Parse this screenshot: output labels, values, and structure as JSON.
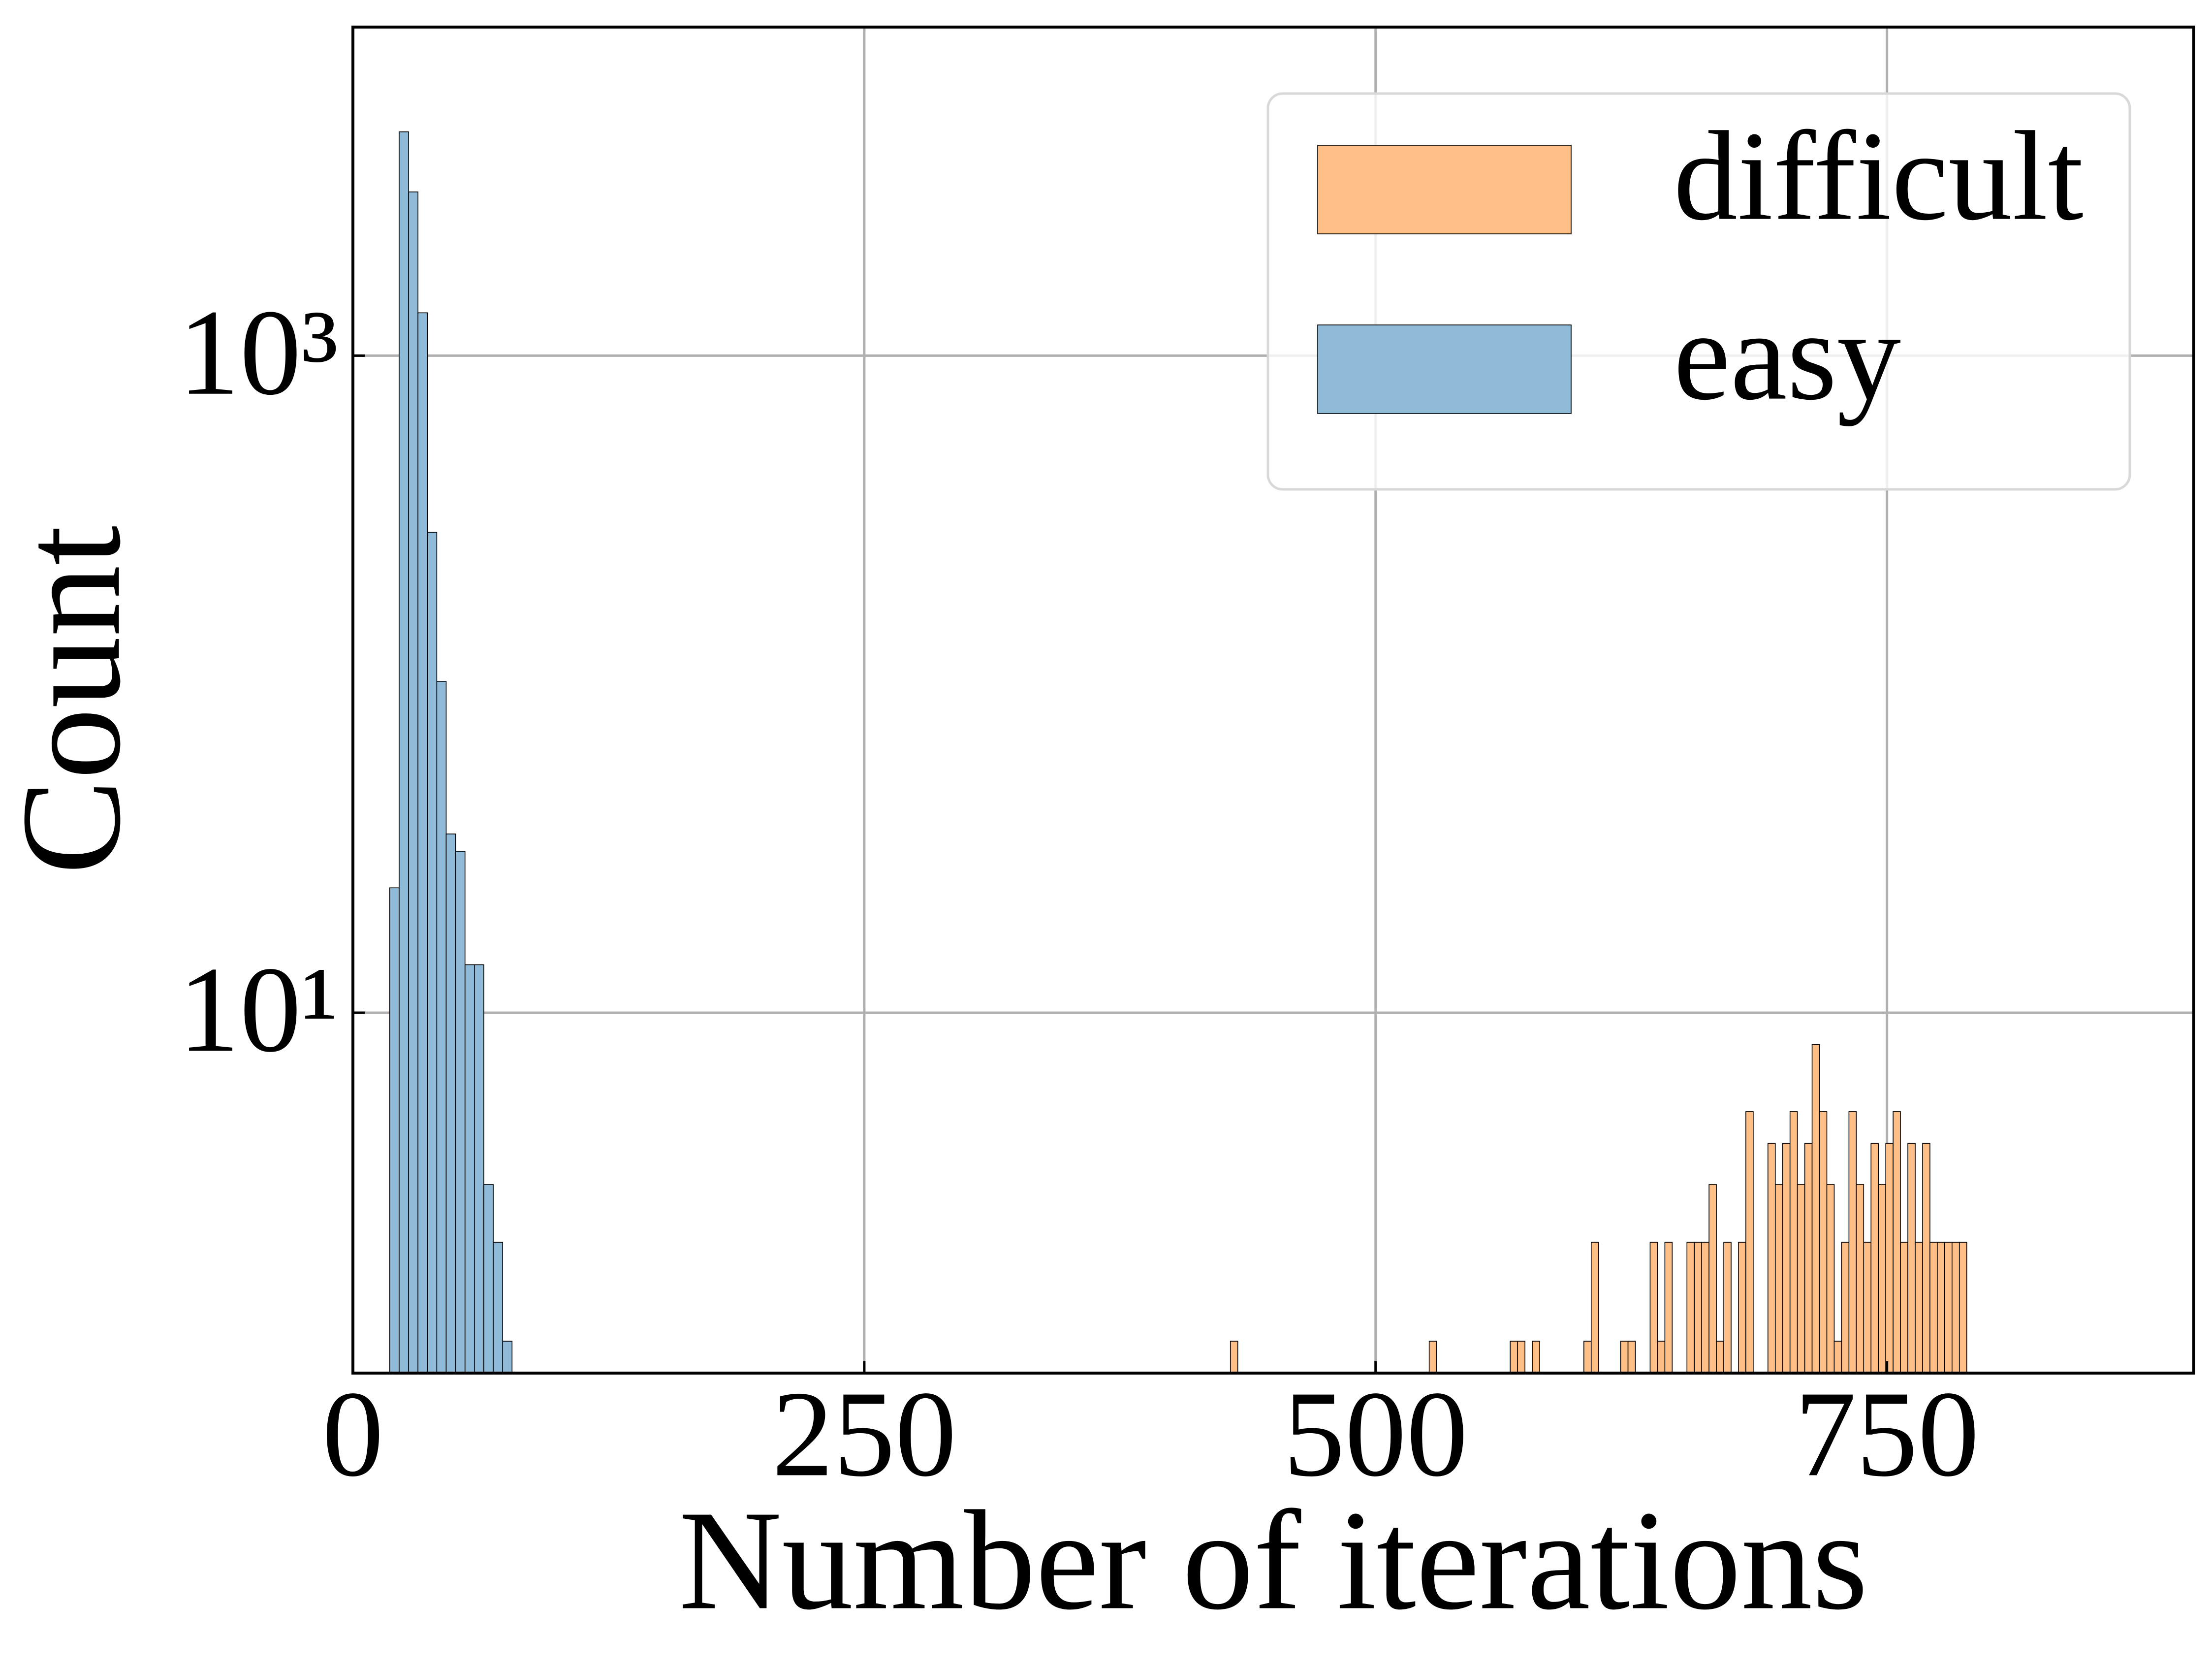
{
  "chart_data": {
    "type": "histogram",
    "xlabel": "Number of iterations",
    "ylabel": "Count",
    "xlim": [
      0,
      900
    ],
    "xticks": [
      0,
      250,
      500,
      750
    ],
    "ylim": [
      0.8,
      10000
    ],
    "yscale": "log",
    "yticks": [
      {
        "value": 10,
        "label": "10¹"
      },
      {
        "value": 1000,
        "label": "10³"
      }
    ],
    "grid": true,
    "legend": "upper right",
    "series": [
      {
        "name": "difficult",
        "color": "#ffbf86",
        "bins": [
          429,
          432.6,
          436.2,
          439.8,
          443.4,
          447,
          450.6,
          454.2,
          457.8,
          461.4,
          465,
          468.6,
          472.2,
          475.8,
          479.4,
          483,
          486.6,
          490.2,
          493.8,
          497.4,
          501,
          504.6,
          508.2,
          511.8,
          515.4,
          519,
          522.6,
          526.2,
          529.8,
          533.4,
          537,
          540.6,
          544.2,
          547.8,
          551.4,
          555,
          558.6,
          562.2,
          565.8,
          569.4,
          573,
          576.6,
          580.2,
          583.8,
          587.4,
          591,
          594.6,
          598.2,
          601.8,
          605.4,
          609,
          612.6,
          616.2,
          619.8,
          623.4,
          627,
          630.6,
          634.2,
          637.8,
          641.4,
          645,
          648.6,
          652.2,
          655.8,
          659.4,
          663,
          666.6,
          670.2,
          673.8,
          677.4,
          681,
          684.6,
          688.2,
          691.8,
          695.4,
          699,
          702.6,
          706.2,
          709.8,
          713.4,
          717,
          720.6,
          724.2,
          727.8,
          731.4,
          735,
          738.6,
          742.2,
          745.8,
          749.4,
          753,
          756.6,
          760.2,
          763.8,
          767.4,
          771,
          774.6,
          778.2,
          781.8,
          785.4,
          789
        ],
        "values": [
          1,
          0,
          0,
          0,
          0,
          0,
          0,
          0,
          0,
          0,
          0,
          0,
          0,
          0,
          0,
          0,
          0,
          0,
          0,
          0,
          0,
          0,
          0,
          0,
          0,
          0,
          0,
          1,
          0,
          0,
          0,
          0,
          0,
          0,
          0,
          0,
          0,
          0,
          1,
          1,
          0,
          1,
          0,
          0,
          0,
          0,
          0,
          0,
          1,
          2,
          0,
          0,
          0,
          1,
          1,
          0,
          0,
          2,
          1,
          2,
          0,
          0,
          2,
          2,
          2,
          3,
          1,
          2,
          0,
          2,
          5,
          0,
          0,
          4,
          3,
          4,
          5,
          3,
          4,
          8,
          5,
          3,
          1,
          2,
          5,
          3,
          2,
          4,
          3,
          4,
          5,
          2,
          4,
          2,
          4,
          2,
          2,
          2,
          2,
          2
        ]
      },
      {
        "name": "easy",
        "color": "#8fbbd9",
        "bins": [
          18,
          22.6,
          27.2,
          31.8,
          36.4,
          41,
          45.6,
          50.2,
          54.8,
          59.4,
          64,
          68.6,
          73.2,
          77.8
        ],
        "values": [
          24,
          4800,
          3150,
          1350,
          290,
          102,
          35,
          31,
          14,
          14,
          3,
          2,
          1
        ]
      }
    ]
  }
}
